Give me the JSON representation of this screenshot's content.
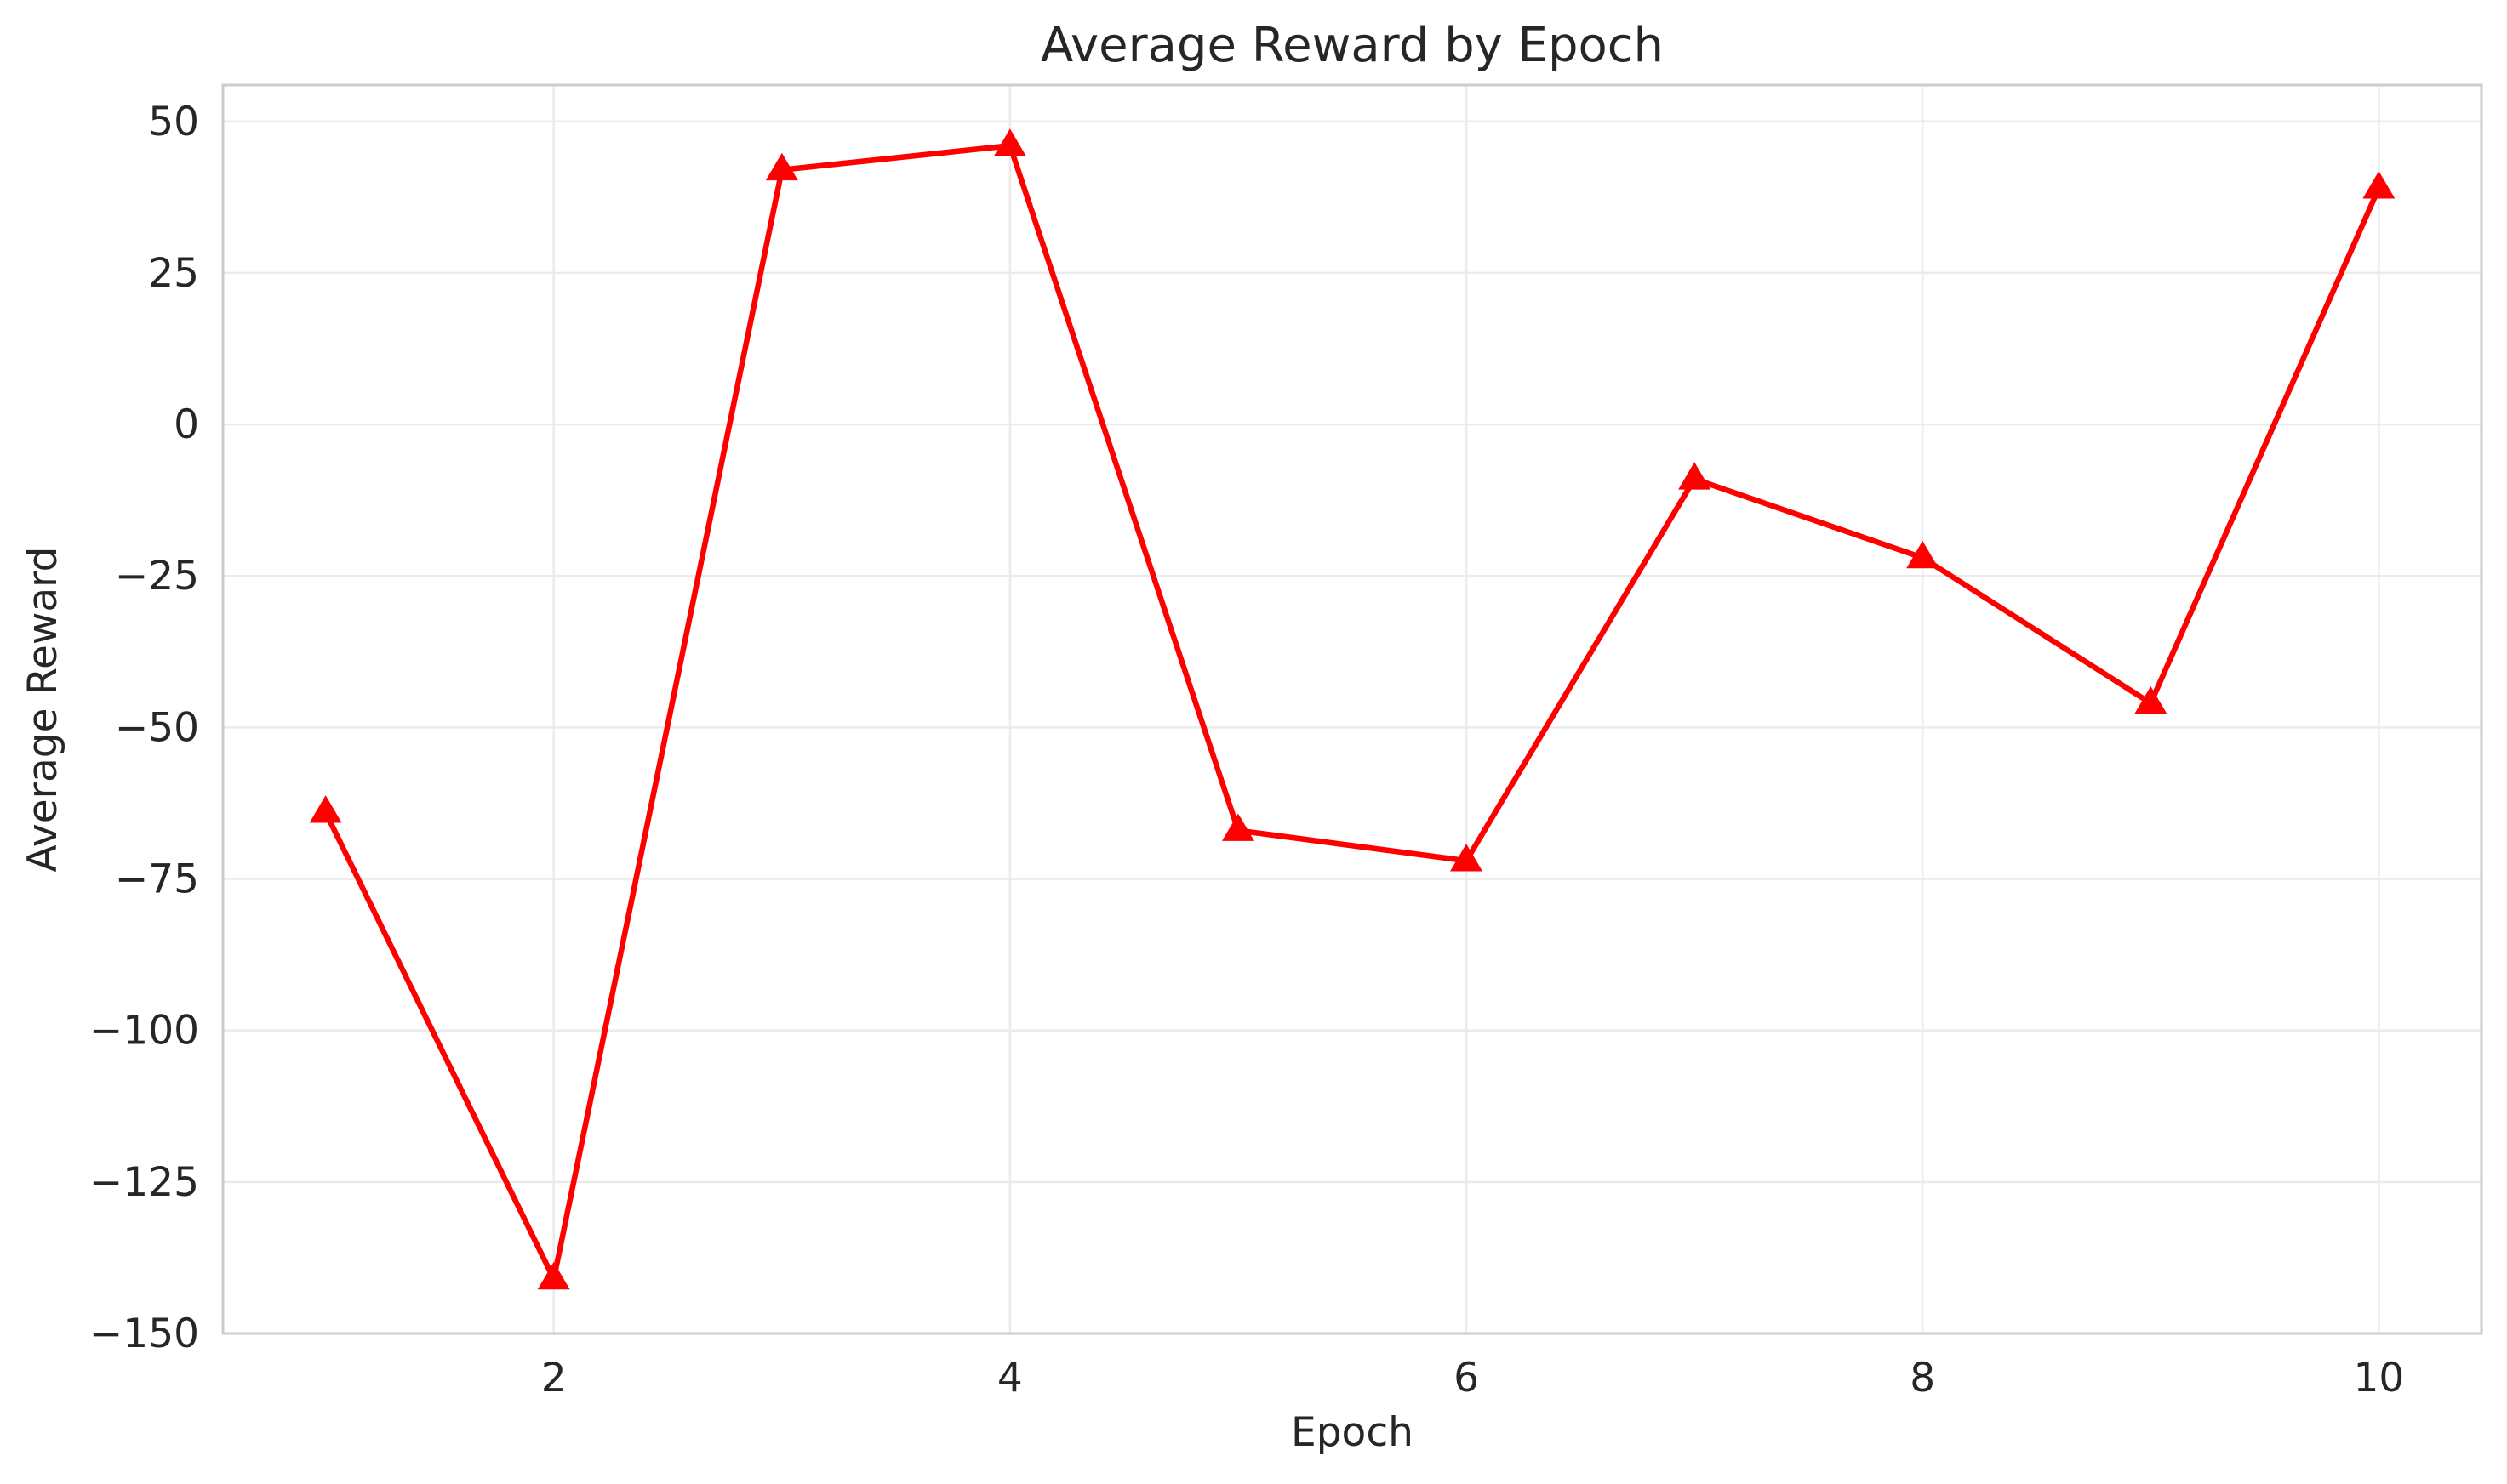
{
  "chart_data": {
    "type": "line",
    "title": "Average Reward by Epoch",
    "xlabel": "Epoch",
    "ylabel": "Average Reward",
    "xlim": [
      0.55,
      10.45
    ],
    "ylim": [
      -150,
      56
    ],
    "xticks": [
      2,
      4,
      6,
      8,
      10
    ],
    "yticks": [
      50,
      25,
      0,
      -25,
      -50,
      -75,
      -100,
      -125,
      -150
    ],
    "ytick_labels": [
      "50",
      "25",
      "0",
      "−25",
      "−50",
      "−75",
      "−100",
      "−125",
      "−150"
    ],
    "grid": true,
    "series": [
      {
        "color": "#ff0000",
        "marker": "triangle-up",
        "x": [
          1,
          2,
          3,
          4,
          5,
          6,
          7,
          8,
          9,
          10
        ],
        "y": [
          -64,
          -141,
          42,
          46,
          -67,
          -72,
          -9,
          -22,
          -46,
          39
        ]
      }
    ]
  }
}
